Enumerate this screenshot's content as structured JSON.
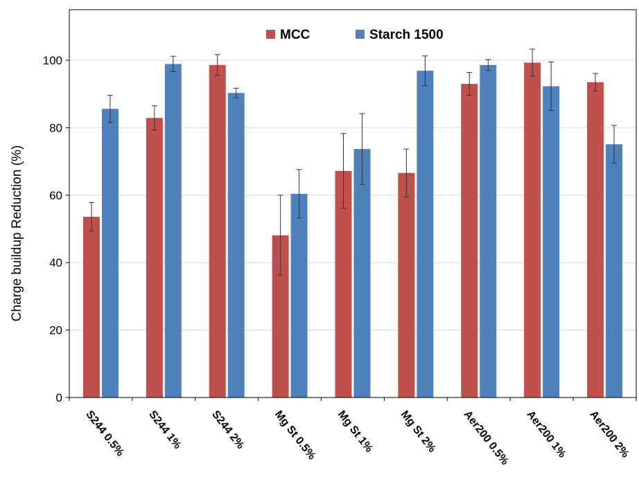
{
  "chart_data": {
    "type": "bar",
    "ylabel": "Charge buildup Reduction (%)",
    "xlabel": "",
    "ylim": [
      0,
      115
    ],
    "yticks": [
      0,
      20,
      40,
      60,
      80,
      100
    ],
    "grid": true,
    "legend_position": "top-center",
    "categories": [
      "S244 0.5%",
      "S244 1%",
      "S244 2%",
      "Mg St 0.5%",
      "Mg St 1%",
      "Mg St 2%",
      "Aer200 0.5%",
      "Aer200 1%",
      "Aer200 2%"
    ],
    "series": [
      {
        "name": "MCC",
        "color": "#c0504d",
        "values": [
          53.6,
          82.9,
          98.6,
          48.1,
          67.2,
          66.6,
          93.0,
          99.3,
          93.5
        ],
        "errors": [
          4.2,
          3.6,
          3.1,
          11.9,
          11.1,
          7.1,
          3.4,
          4.0,
          2.6
        ]
      },
      {
        "name": "Starch 1500",
        "color": "#4f81bd",
        "values": [
          85.6,
          98.9,
          90.3,
          60.4,
          73.7,
          96.9,
          98.6,
          92.3,
          75.1
        ],
        "errors": [
          4.0,
          2.3,
          1.4,
          7.2,
          10.5,
          4.4,
          1.6,
          7.2,
          5.6
        ]
      }
    ]
  }
}
